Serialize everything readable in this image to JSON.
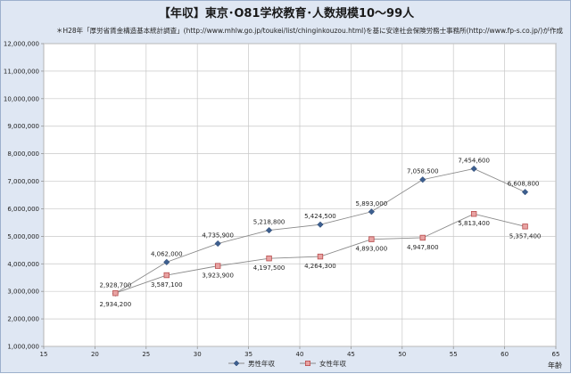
{
  "chart_data": {
    "type": "line",
    "title": "【年収】東京･O81学校教育･人数規模10～99人",
    "subtitle": "＊H28年「厚労省賃金構造基本統計調査」(http://www.mhlw.go.jp/toukei/list/chinginkouzou.html)を基に安達社会保険労務士事務所(http://www.fp-s.co.jp/)が作成",
    "xlabel": "年齢",
    "ylabel": "",
    "xlim": [
      15,
      65
    ],
    "xticks": [
      15,
      20,
      25,
      30,
      35,
      40,
      45,
      50,
      55,
      60,
      65
    ],
    "ylim": [
      1000000,
      12000000
    ],
    "yticks": [
      1000000,
      2000000,
      3000000,
      4000000,
      5000000,
      6000000,
      7000000,
      8000000,
      9000000,
      10000000,
      11000000,
      12000000
    ],
    "ytick_labels": [
      "1,000,000",
      "2,000,000",
      "3,000,000",
      "4,000,000",
      "5,000,000",
      "6,000,000",
      "7,000,000",
      "8,000,000",
      "9,000,000",
      "10,000,000",
      "11,000,000",
      "12,000,000"
    ],
    "grid": true,
    "legend_position": "bottom",
    "x": [
      22,
      27,
      32,
      37,
      42,
      47,
      52,
      57,
      62
    ],
    "series": [
      {
        "name": "男性年収",
        "color": "#3d5f8f",
        "line_color": "#8a8a8a",
        "marker": "diamond",
        "values": [
          2928700,
          4062000,
          4735900,
          5218800,
          5424500,
          5893000,
          7058500,
          7454600,
          6608800
        ],
        "labels": [
          "2,928,700",
          "4,062,000",
          "4,735,900",
          "5,218,800",
          "5,424,500",
          "5,893,000",
          "7,058,500",
          "7,454,600",
          "6,608,800"
        ]
      },
      {
        "name": "女性年収",
        "color": "#e8a3a3",
        "line_color": "#8a8a8a",
        "marker": "square",
        "values": [
          2934200,
          3587100,
          3923900,
          4197500,
          4264300,
          4893000,
          4947800,
          5813400,
          5357400
        ],
        "labels": [
          "2,934,200",
          "3,587,100",
          "3,923,900",
          "4,197,500",
          "4,264,300",
          "4,893,000",
          "4,947,800",
          "5,813,400",
          "5,357,400"
        ]
      }
    ]
  }
}
